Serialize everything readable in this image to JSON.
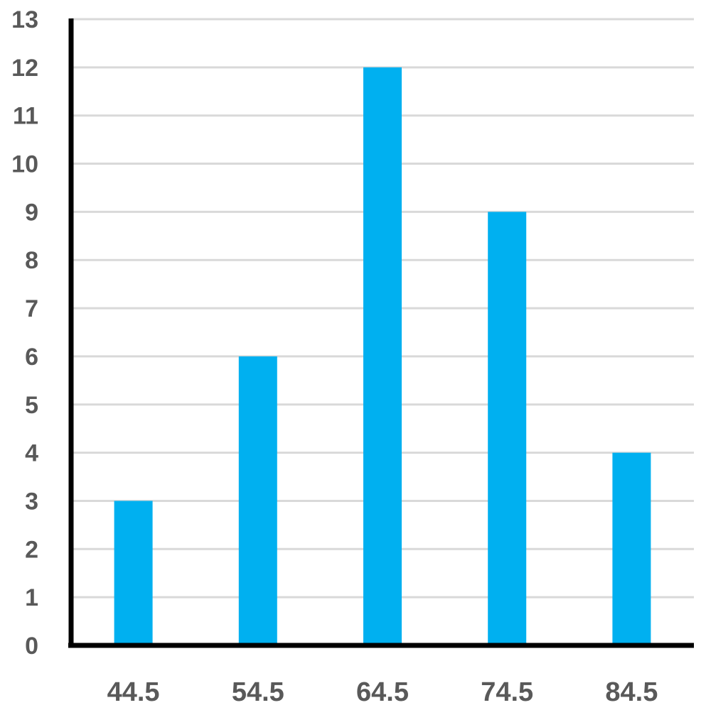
{
  "chart_data": {
    "type": "bar",
    "categories": [
      "44.5",
      "54.5",
      "64.5",
      "74.5",
      "84.5"
    ],
    "values": [
      3,
      6,
      12,
      9,
      4
    ],
    "title": "",
    "xlabel": "",
    "ylabel": "",
    "ylim": [
      0,
      13
    ],
    "yticks": [
      "0",
      "1",
      "2",
      "3",
      "4",
      "5",
      "6",
      "7",
      "8",
      "9",
      "10",
      "11",
      "12",
      "13"
    ],
    "grid": true,
    "legend": "none",
    "colors": {
      "bar": "#00B0F0",
      "grid": "#D9D9D9",
      "axis": "#000000",
      "tick_text": "#595959"
    }
  }
}
